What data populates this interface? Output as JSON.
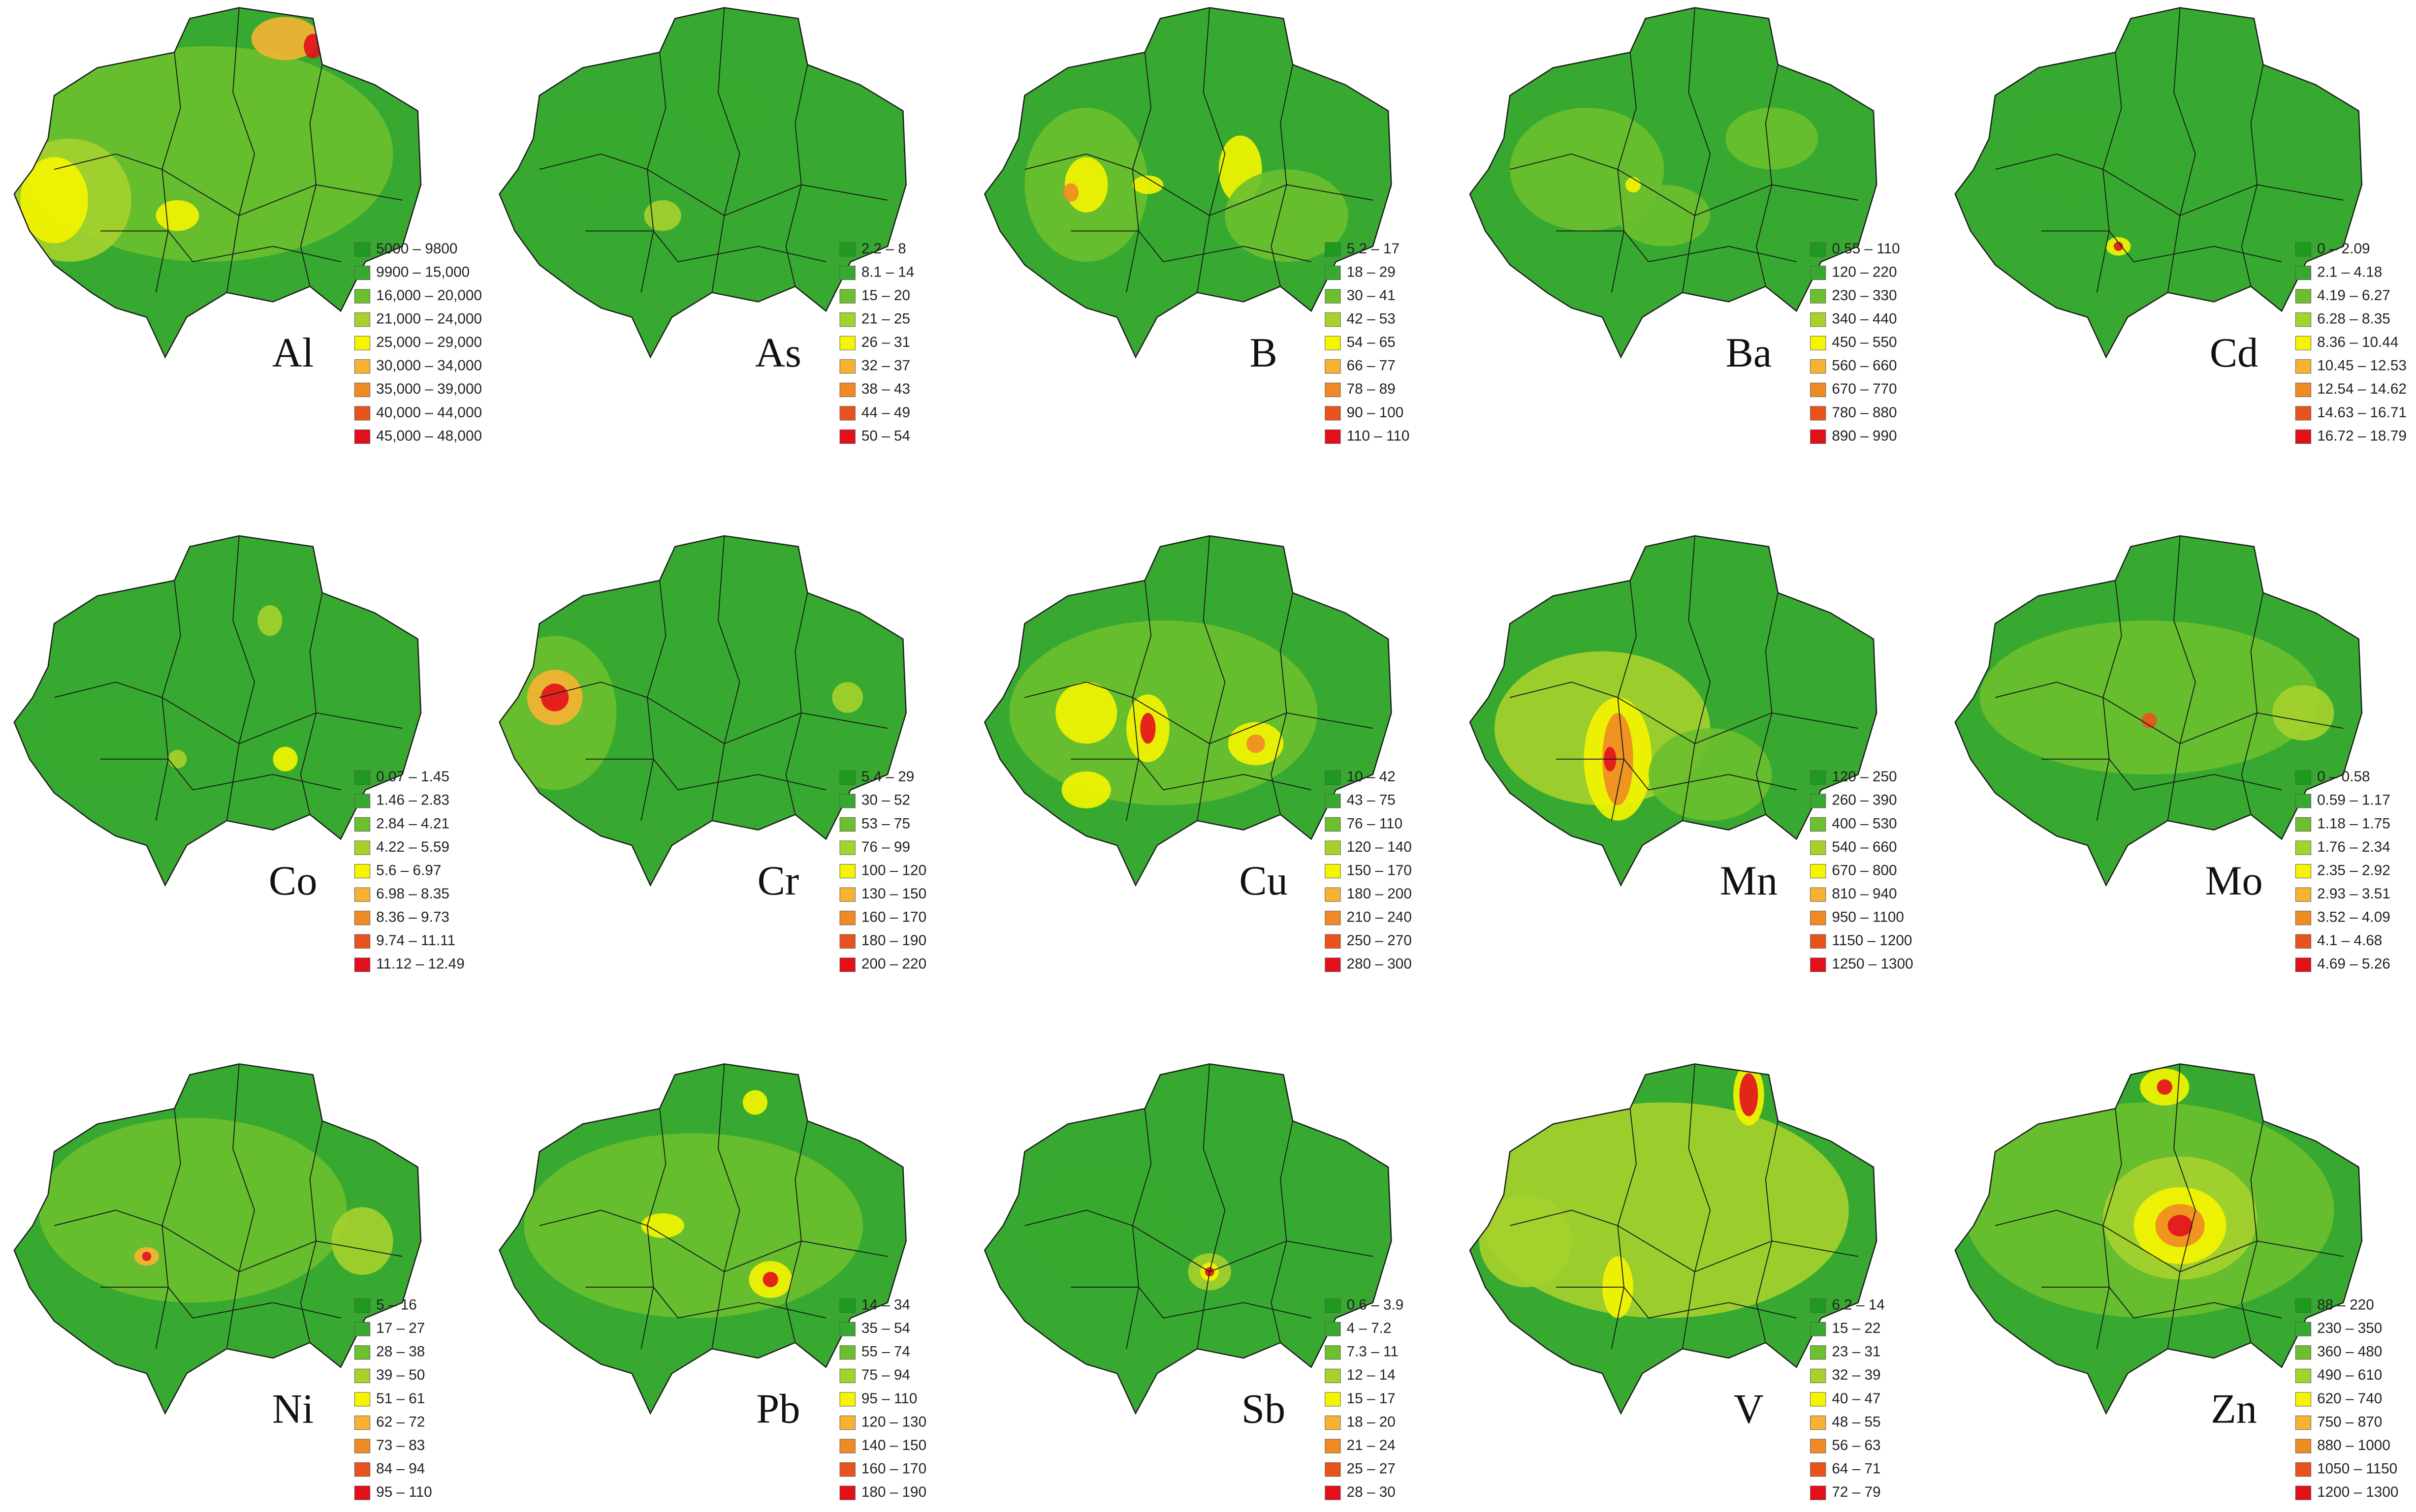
{
  "colors": [
    "#1e9a1e",
    "#38a930",
    "#6cbf2f",
    "#a6d22d",
    "#f5f500",
    "#f7b233",
    "#f08a24",
    "#e8531d",
    "#e3101c"
  ],
  "panels": [
    {
      "element": "Al",
      "legend": [
        "5000 – 9800",
        "9900 – 15,000",
        "16,000 – 20,000",
        "21,000 – 24,000",
        "25,000 – 29,000",
        "30,000 – 34,000",
        "35,000 – 39,000",
        "40,000 – 44,000",
        "45,000 – 48,000"
      ]
    },
    {
      "element": "As",
      "legend": [
        "2.2 – 8",
        "8.1 – 14",
        "15 – 20",
        "21 – 25",
        "26 – 31",
        "32 – 37",
        "38 – 43",
        "44 – 49",
        "50 – 54"
      ]
    },
    {
      "element": "B",
      "legend": [
        "5.2 – 17",
        "18 – 29",
        "30 – 41",
        "42 – 53",
        "54 – 65",
        "66 – 77",
        "78 – 89",
        "90 – 100",
        "110 – 110"
      ]
    },
    {
      "element": "Ba",
      "legend": [
        "0.55 – 110",
        "120 – 220",
        "230 – 330",
        "340 – 440",
        "450 – 550",
        "560 – 660",
        "670 – 770",
        "780 – 880",
        "890 – 990"
      ]
    },
    {
      "element": "Cd",
      "legend": [
        "0 – 2.09",
        "2.1 – 4.18",
        "4.19 – 6.27",
        "6.28 – 8.35",
        "8.36 – 10.44",
        "10.45 – 12.53",
        "12.54 – 14.62",
        "14.63 – 16.71",
        "16.72 – 18.79"
      ]
    },
    {
      "element": "Co",
      "legend": [
        "0.07 – 1.45",
        "1.46 – 2.83",
        "2.84 – 4.21",
        "4.22 – 5.59",
        "5.6 – 6.97",
        "6.98 – 8.35",
        "8.36 – 9.73",
        "9.74 – 11.11",
        "11.12 – 12.49"
      ]
    },
    {
      "element": "Cr",
      "legend": [
        "5.4 – 29",
        "30 – 52",
        "53 – 75",
        "76 – 99",
        "100 – 120",
        "130 – 150",
        "160 – 170",
        "180 – 190",
        "200 – 220"
      ]
    },
    {
      "element": "Cu",
      "legend": [
        "10 – 42",
        "43 – 75",
        "76 – 110",
        "120 – 140",
        "150 – 170",
        "180 – 200",
        "210 – 240",
        "250 – 270",
        "280 – 300"
      ]
    },
    {
      "element": "Mn",
      "legend": [
        "120 – 250",
        "260 – 390",
        "400 – 530",
        "540 – 660",
        "670 – 800",
        "810 – 940",
        "950 – 1100",
        "1150 – 1200",
        "1250 – 1300"
      ]
    },
    {
      "element": "Mo",
      "legend": [
        "0 – 0.58",
        "0.59 – 1.17",
        "1.18 – 1.75",
        "1.76 – 2.34",
        "2.35 – 2.92",
        "2.93 – 3.51",
        "3.52 – 4.09",
        "4.1 – 4.68",
        "4.69 – 5.26"
      ]
    },
    {
      "element": "Ni",
      "legend": [
        "5 – 16",
        "17 – 27",
        "28 – 38",
        "39 – 50",
        "51 – 61",
        "62 – 72",
        "73 – 83",
        "84 – 94",
        "95 – 110"
      ]
    },
    {
      "element": "Pb",
      "legend": [
        "14 – 34",
        "35 – 54",
        "55 – 74",
        "75 – 94",
        "95 – 110",
        "120 – 130",
        "140 – 150",
        "160 – 170",
        "180 – 190"
      ]
    },
    {
      "element": "Sb",
      "legend": [
        "0.6 – 3.9",
        "4 – 7.2",
        "7.3 – 11",
        "12 – 14",
        "15 – 17",
        "18 – 20",
        "21 – 24",
        "25 – 27",
        "28 – 30"
      ]
    },
    {
      "element": "V",
      "legend": [
        "6.2 – 14",
        "15 – 22",
        "23 – 31",
        "32 – 39",
        "40 – 47",
        "48 – 55",
        "56 – 63",
        "64 – 71",
        "72 – 79"
      ]
    },
    {
      "element": "Zn",
      "legend": [
        "88 – 220",
        "230 – 350",
        "360 – 480",
        "490 – 610",
        "620 – 740",
        "750 – 870",
        "880 – 1000",
        "1050 – 1150",
        "1200 – 1300"
      ]
    }
  ]
}
